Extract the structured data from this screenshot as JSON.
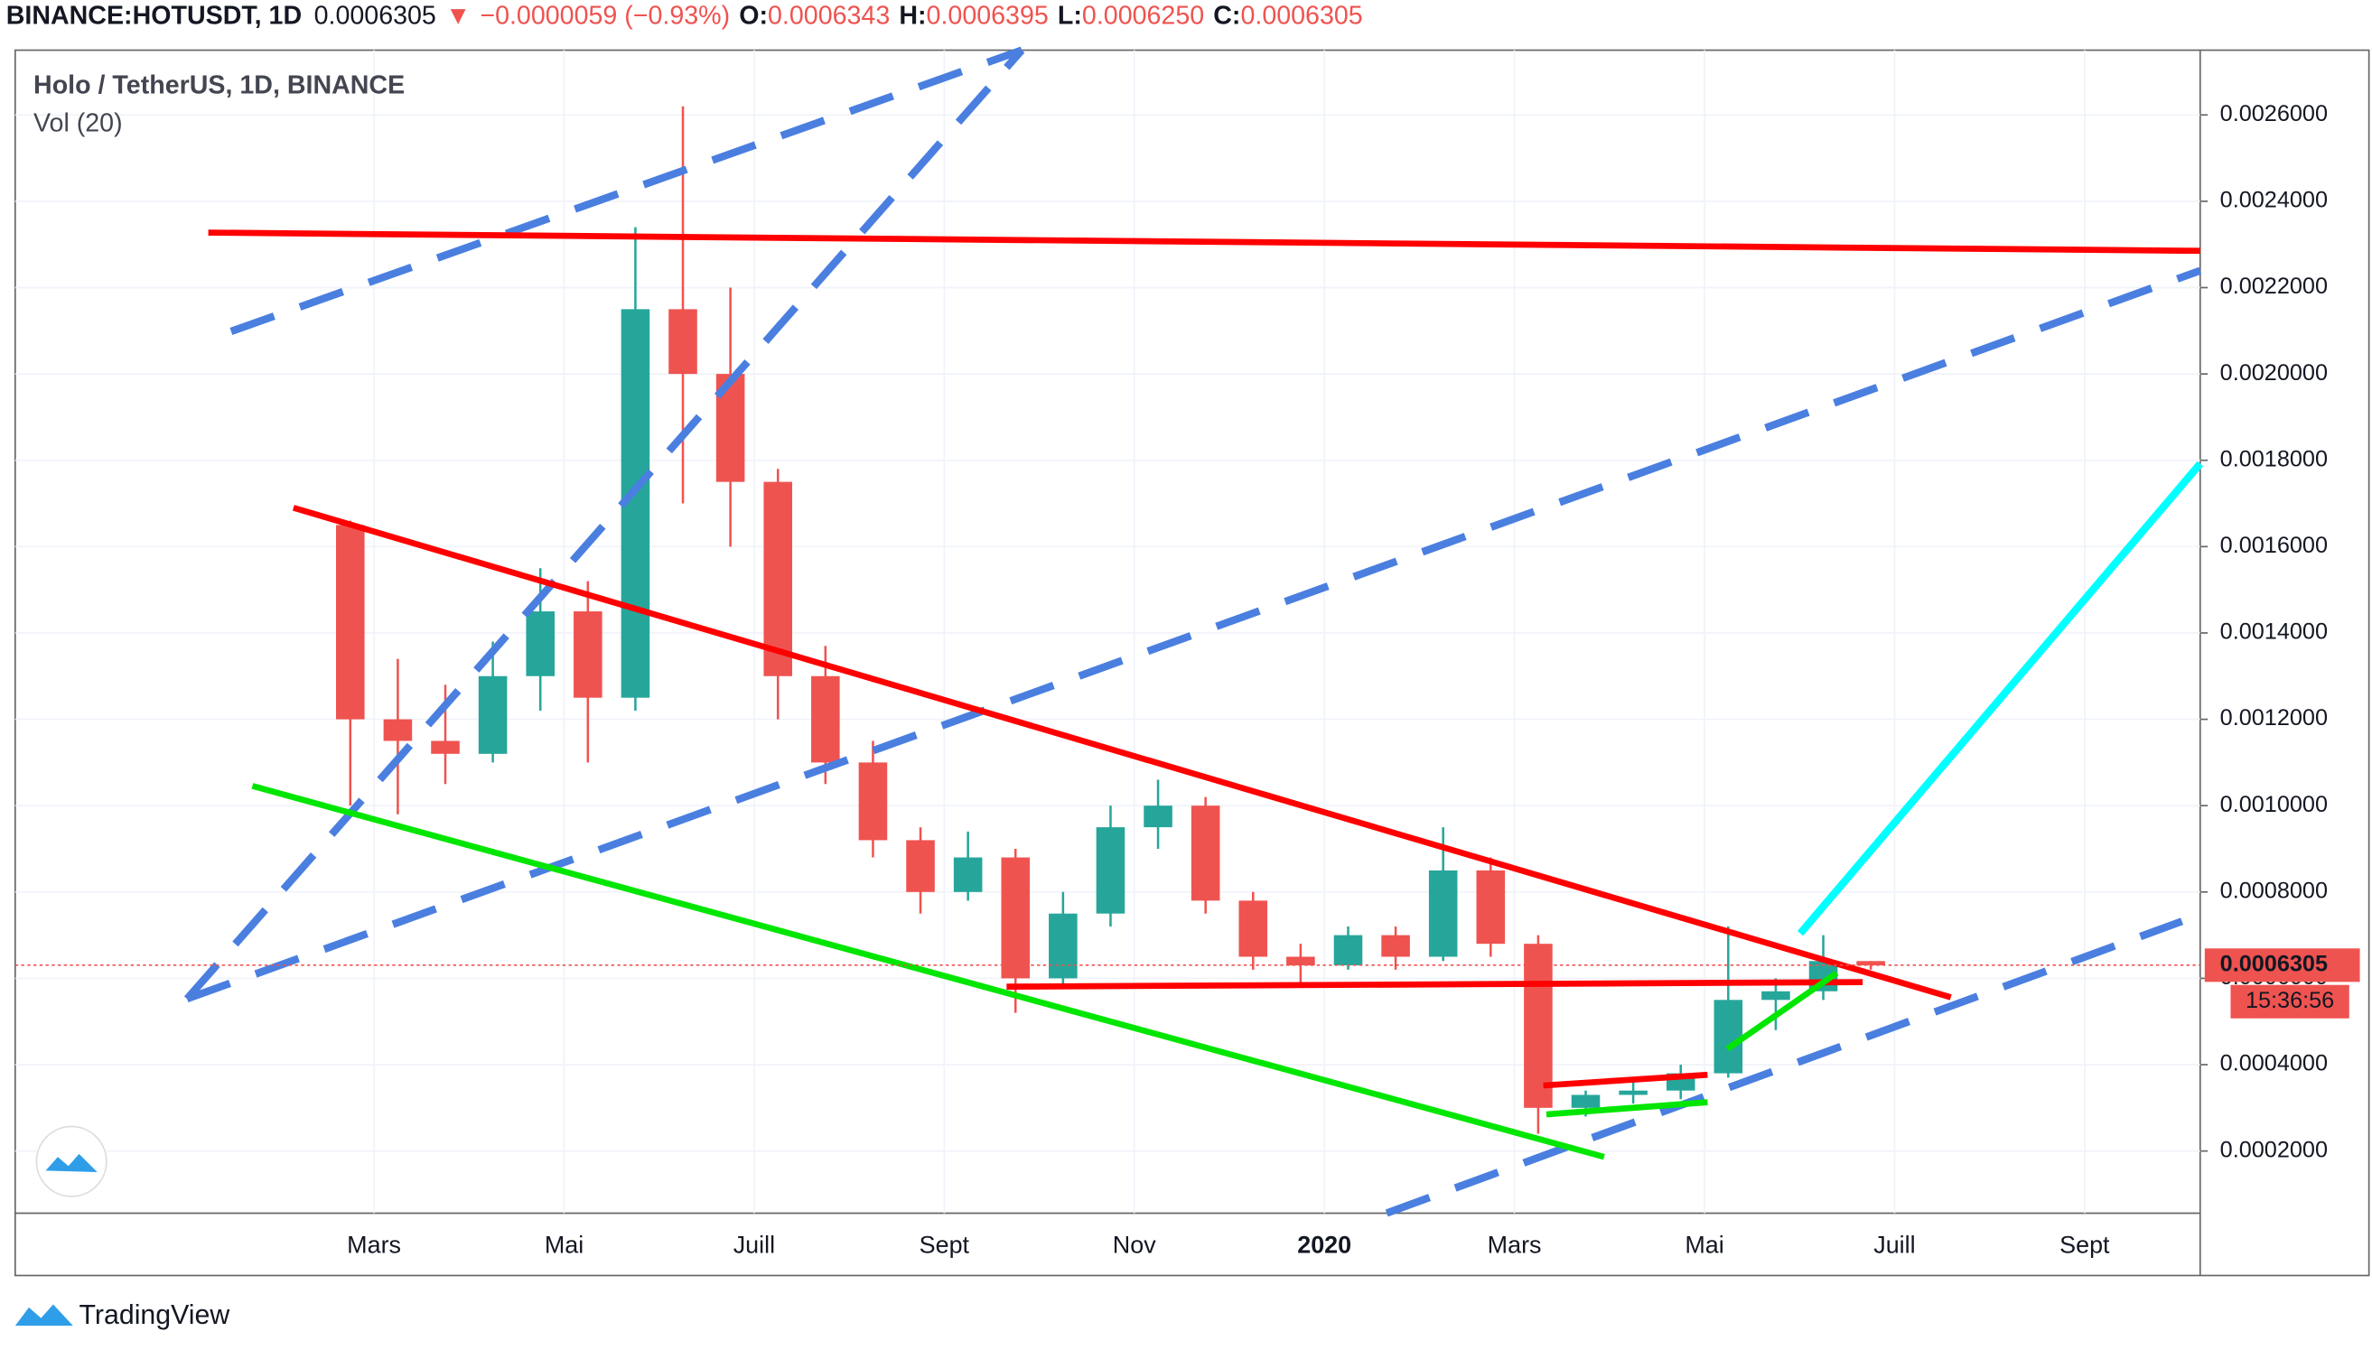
{
  "header": {
    "symbol": "BINANCE:HOTUSDT, 1D",
    "last": "0.0006305",
    "arrow": "▼",
    "change": "−0.0000059 (−0.93%)",
    "o_label": "O:",
    "o": "0.0006343",
    "h_label": "H:",
    "h": "0.0006395",
    "l_label": "L:",
    "l": "0.0006250",
    "c_label": "C:",
    "c": "0.0006305"
  },
  "chart_data": {
    "type": "candlestick",
    "title": "Holo / TetherUS, 1D, BINANCE",
    "subtitle": "Vol (20)",
    "categories": [
      null,
      "Mars",
      null,
      null,
      null,
      "Mai",
      null,
      null,
      null,
      "Juill",
      null,
      null,
      null,
      "Sept",
      null,
      null,
      null,
      "Nov",
      null,
      null,
      null,
      "2020",
      null,
      null,
      null,
      "Mars",
      null,
      null,
      null,
      "Mai",
      null,
      null,
      null,
      "Juill",
      null,
      null,
      null,
      "Sept",
      null
    ],
    "open": [
      0.00165,
      0.0012,
      0.00115,
      0.00112,
      0.0013,
      0.00145,
      0.00125,
      0.00215,
      0.002,
      0.00175,
      0.0013,
      0.0011,
      0.00092,
      0.0008,
      0.00088,
      0.0006,
      0.00075,
      0.00095,
      0.001,
      0.00078,
      0.00065,
      0.00063,
      0.0007,
      0.00065,
      0.00085,
      0.00068,
      0.0003,
      0.00033,
      0.00034,
      0.00038,
      0.00055,
      0.00057,
      0.00064,
      null,
      null,
      null,
      null,
      null,
      null
    ],
    "high": [
      0.00166,
      0.00134,
      0.00128,
      0.00138,
      0.00155,
      0.00152,
      0.00234,
      0.00262,
      0.0022,
      0.00178,
      0.00137,
      0.00115,
      0.00095,
      0.00094,
      0.0009,
      0.0008,
      0.001,
      0.00106,
      0.00102,
      0.0008,
      0.00068,
      0.00072,
      0.00072,
      0.00095,
      0.00088,
      0.0007,
      0.00034,
      0.00036,
      0.0004,
      0.00072,
      0.0006,
      0.0007,
      0.00064,
      null,
      null,
      null,
      null,
      null,
      null
    ],
    "low": [
      0.001,
      0.00098,
      0.00105,
      0.0011,
      0.00122,
      0.0011,
      0.00122,
      0.0017,
      0.0016,
      0.0012,
      0.00105,
      0.00088,
      0.00075,
      0.00078,
      0.00052,
      0.00058,
      0.00072,
      0.0009,
      0.00075,
      0.00062,
      0.00058,
      0.00062,
      0.00062,
      0.00064,
      0.00065,
      0.00024,
      0.00028,
      0.00031,
      0.00032,
      0.00037,
      0.00048,
      0.00055,
      0.00062,
      null,
      null,
      null,
      null,
      null,
      null
    ],
    "close": [
      0.0012,
      0.00115,
      0.00112,
      0.0013,
      0.00145,
      0.00125,
      0.00215,
      0.002,
      0.00175,
      0.0013,
      0.0011,
      0.00092,
      0.0008,
      0.00088,
      0.0006,
      0.00075,
      0.00095,
      0.001,
      0.00078,
      0.00065,
      0.00063,
      0.0007,
      0.00065,
      0.00085,
      0.00068,
      0.0003,
      0.00033,
      0.00034,
      0.00038,
      0.00055,
      0.00057,
      0.00064,
      0.00063,
      null,
      null,
      null,
      null,
      null,
      null
    ],
    "up_color": "#26a69a",
    "down_color": "#ef5350",
    "ylim": [
      5.6e-05,
      0.00275
    ],
    "yticks": [
      {
        "value": 0.0002,
        "label": "0.0002000"
      },
      {
        "value": 0.0004,
        "label": "0.0004000"
      },
      {
        "value": 0.0006,
        "label": "0.0006000"
      },
      {
        "value": 0.0008,
        "label": "0.0008000"
      },
      {
        "value": 0.001,
        "label": "0.0010000"
      },
      {
        "value": 0.0012,
        "label": "0.0012000"
      },
      {
        "value": 0.0014,
        "label": "0.0014000"
      },
      {
        "value": 0.0016,
        "label": "0.0016000"
      },
      {
        "value": 0.0018,
        "label": "0.0018000"
      },
      {
        "value": 0.002,
        "label": "0.0020000"
      },
      {
        "value": 0.0022,
        "label": "0.0022000"
      },
      {
        "value": 0.0024,
        "label": "0.0024000"
      },
      {
        "value": 0.0026,
        "label": "0.0026000"
      }
    ],
    "grid": true,
    "last_price": {
      "value": 0.0006305,
      "label": "0.0006305"
    },
    "countdown": "15:36:56",
    "brand": "TradingView"
  }
}
